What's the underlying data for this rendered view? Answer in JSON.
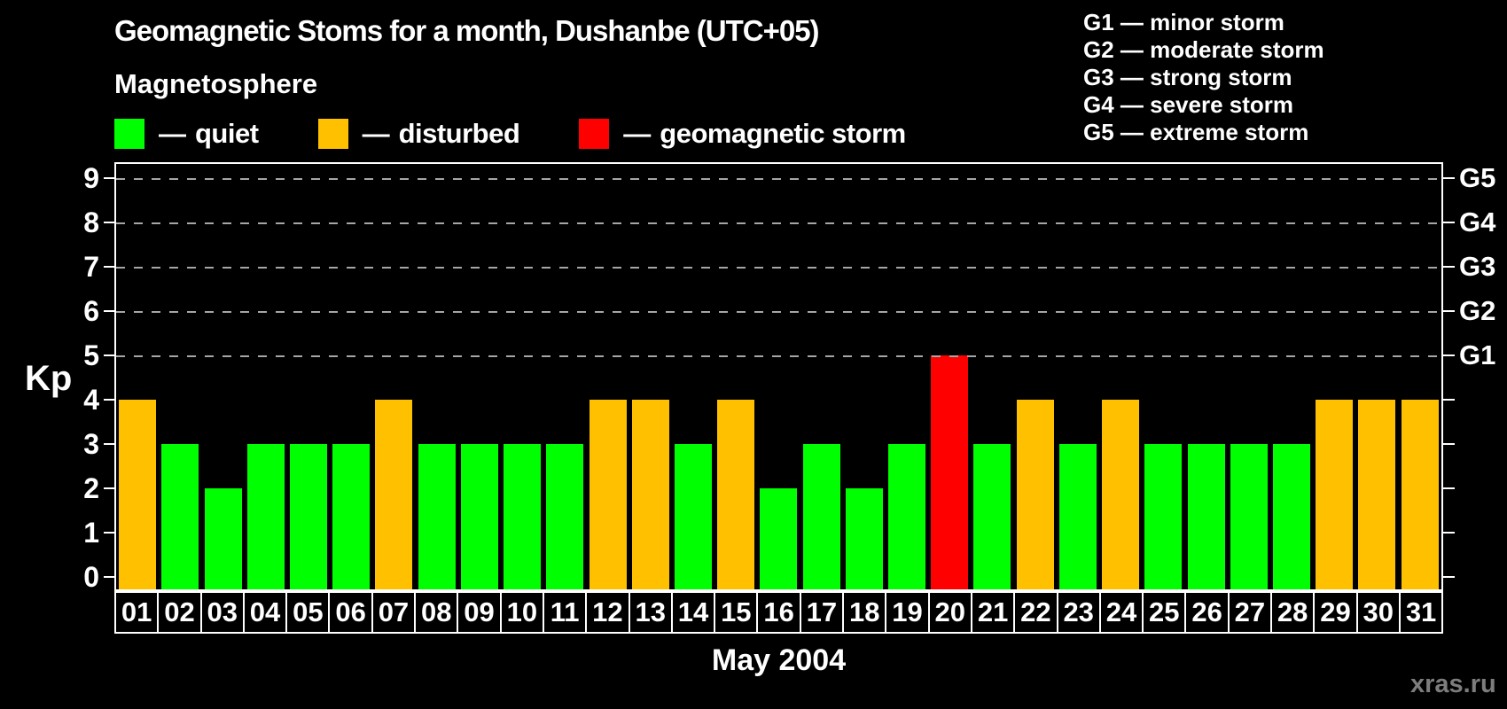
{
  "header": {
    "title": "Geomagnetic Stoms for a month, Dushanbe (UTC+05)",
    "subtitle": "Magnetosphere"
  },
  "legend": {
    "items": [
      {
        "key": "quiet",
        "dash": "—",
        "label": "quiet",
        "color": "#00FF00"
      },
      {
        "key": "disturbed",
        "dash": "—",
        "label": "disturbed",
        "color": "#FFC000"
      },
      {
        "key": "storm",
        "dash": "—",
        "label": "geomagnetic storm",
        "color": "#FF0000"
      }
    ]
  },
  "g_legend": {
    "lines": [
      "G1 — minor storm",
      "G2 — moderate storm",
      "G3 — strong storm",
      "G4 — severe storm",
      "G5 — extreme storm"
    ]
  },
  "axis": {
    "y_label": "Kp",
    "x_label": "May 2004",
    "y_ticks": [
      0,
      1,
      2,
      3,
      4,
      5,
      6,
      7,
      8,
      9
    ]
  },
  "watermark": "xras.ru",
  "chart_data": {
    "type": "bar",
    "title": "Geomagnetic Stoms for a month, Dushanbe (UTC+05)",
    "xlabel": "May 2004",
    "ylabel": "Kp",
    "ylim": [
      0,
      9
    ],
    "categories": [
      "01",
      "02",
      "03",
      "04",
      "05",
      "06",
      "07",
      "08",
      "09",
      "10",
      "11",
      "12",
      "13",
      "14",
      "15",
      "16",
      "17",
      "18",
      "19",
      "20",
      "21",
      "22",
      "23",
      "24",
      "25",
      "26",
      "27",
      "28",
      "29",
      "30",
      "31"
    ],
    "values": [
      4,
      3,
      2,
      3,
      3,
      3,
      4,
      3,
      3,
      3,
      3,
      4,
      4,
      3,
      4,
      2,
      3,
      2,
      3,
      5,
      3,
      4,
      3,
      4,
      3,
      3,
      3,
      3,
      4,
      4,
      4
    ],
    "statuses": [
      "disturbed",
      "quiet",
      "quiet",
      "quiet",
      "quiet",
      "quiet",
      "disturbed",
      "quiet",
      "quiet",
      "quiet",
      "quiet",
      "disturbed",
      "disturbed",
      "quiet",
      "disturbed",
      "quiet",
      "quiet",
      "quiet",
      "quiet",
      "storm",
      "quiet",
      "disturbed",
      "quiet",
      "disturbed",
      "quiet",
      "quiet",
      "quiet",
      "quiet",
      "disturbed",
      "disturbed",
      "disturbed"
    ],
    "colors": {
      "quiet": "#00FF00",
      "disturbed": "#FFC000",
      "storm": "#FF0000"
    },
    "gridlines_at": [
      5,
      6,
      7,
      8,
      9
    ],
    "grid_style": "dashed",
    "legend_position": "top",
    "right_axis_labels": [
      {
        "level": 5,
        "label": "G1"
      },
      {
        "level": 6,
        "label": "G2"
      },
      {
        "level": 7,
        "label": "G3"
      },
      {
        "level": 8,
        "label": "G4"
      },
      {
        "level": 9,
        "label": "G5"
      }
    ]
  }
}
